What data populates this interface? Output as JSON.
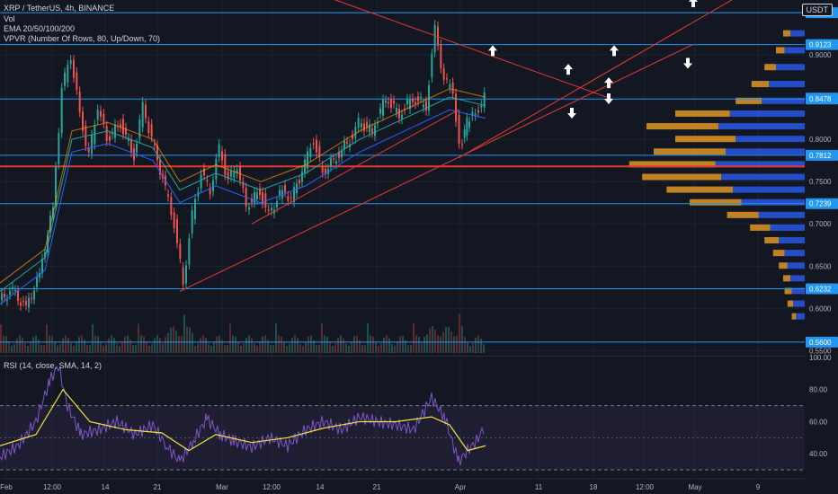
{
  "header": {
    "title": "XRP / TetherUS, 4h, BINANCE",
    "vol_label": "Vol",
    "ema_label": "EMA 20/50/100/200",
    "vpvr_label": "VPVR (Number Of Rows, 80, Up/Down, 70)",
    "rsi_label": "RSI (14, close, SMA, 14, 2)",
    "currency": "USDT"
  },
  "colors": {
    "background": "#131722",
    "grid": "#1e222d",
    "up_candle": "#26a69a",
    "down_candle": "#ef5350",
    "trendline": "#e53935",
    "hline": "#2196f3",
    "price_tag": "#2196f3",
    "vp_up": "#2962ff",
    "vp_down": "#f9a825",
    "rsi_line": "#7e57c2",
    "rsi_sma": "#f0e442",
    "rsi_band": "#7e57c2"
  },
  "chart_data": {
    "type": "line",
    "title": "XRP / TetherUS, 4h, BINANCE",
    "x_ticks": [
      "Feb",
      "12:00",
      "14",
      "21",
      "Mar",
      "12:00",
      "14",
      "21",
      "Apr",
      "11",
      "18",
      "12:00",
      "May",
      "9"
    ],
    "y_ticks": [
      "0.9500",
      "0.9000",
      "0.8500",
      "0.8000",
      "0.7500",
      "0.7000",
      "0.6500",
      "0.6000",
      "0.5500"
    ],
    "ylim": [
      0.545,
      0.965
    ],
    "price_levels": [
      "0.9500",
      "0.9123",
      "0.8488",
      "0.8478",
      "0.7812",
      "0.7239",
      "0.6232",
      "0.5600"
    ],
    "horizontal_lines": [
      0.95,
      0.9123,
      0.8478,
      0.7812,
      0.7239,
      0.6232,
      0.56
    ],
    "red_horizontal": 0.768,
    "price_path": [
      [
        0,
        0.61
      ],
      [
        15,
        0.62
      ],
      [
        30,
        0.6
      ],
      [
        45,
        0.64
      ],
      [
        60,
        0.72
      ],
      [
        70,
        0.86
      ],
      [
        80,
        0.9
      ],
      [
        90,
        0.83
      ],
      [
        100,
        0.78
      ],
      [
        110,
        0.84
      ],
      [
        120,
        0.8
      ],
      [
        135,
        0.82
      ],
      [
        150,
        0.78
      ],
      [
        160,
        0.84
      ],
      [
        170,
        0.8
      ],
      [
        185,
        0.74
      ],
      [
        195,
        0.7
      ],
      [
        205,
        0.63
      ],
      [
        215,
        0.71
      ],
      [
        225,
        0.76
      ],
      [
        235,
        0.74
      ],
      [
        245,
        0.79
      ],
      [
        255,
        0.75
      ],
      [
        265,
        0.77
      ],
      [
        275,
        0.72
      ],
      [
        290,
        0.74
      ],
      [
        300,
        0.71
      ],
      [
        315,
        0.74
      ],
      [
        325,
        0.73
      ],
      [
        340,
        0.77
      ],
      [
        350,
        0.8
      ],
      [
        360,
        0.76
      ],
      [
        375,
        0.78
      ],
      [
        390,
        0.8
      ],
      [
        400,
        0.82
      ],
      [
        415,
        0.81
      ],
      [
        430,
        0.85
      ],
      [
        445,
        0.83
      ],
      [
        460,
        0.85
      ],
      [
        475,
        0.84
      ],
      [
        485,
        0.93
      ],
      [
        495,
        0.87
      ],
      [
        505,
        0.86
      ],
      [
        512,
        0.79
      ],
      [
        520,
        0.82
      ],
      [
        530,
        0.83
      ],
      [
        540,
        0.85
      ]
    ],
    "ema_path": [
      [
        0,
        0.62
      ],
      [
        50,
        0.66
      ],
      [
        80,
        0.8
      ],
      [
        120,
        0.81
      ],
      [
        170,
        0.79
      ],
      [
        200,
        0.74
      ],
      [
        240,
        0.76
      ],
      [
        290,
        0.74
      ],
      [
        340,
        0.76
      ],
      [
        400,
        0.8
      ],
      [
        460,
        0.83
      ],
      [
        500,
        0.85
      ],
      [
        540,
        0.84
      ]
    ],
    "rsi_ylim": [
      25,
      100
    ],
    "rsi_ticks": [
      "100.00",
      "80.00",
      "60.00",
      "40.00"
    ],
    "rsi_bands": [
      30,
      70
    ],
    "rsi": [
      [
        0,
        38
      ],
      [
        20,
        45
      ],
      [
        40,
        60
      ],
      [
        55,
        85
      ],
      [
        65,
        95
      ],
      [
        75,
        70
      ],
      [
        90,
        52
      ],
      [
        110,
        55
      ],
      [
        130,
        60
      ],
      [
        150,
        52
      ],
      [
        170,
        58
      ],
      [
        185,
        45
      ],
      [
        200,
        35
      ],
      [
        215,
        48
      ],
      [
        230,
        62
      ],
      [
        245,
        52
      ],
      [
        260,
        48
      ],
      [
        280,
        44
      ],
      [
        300,
        50
      ],
      [
        320,
        45
      ],
      [
        340,
        55
      ],
      [
        360,
        60
      ],
      [
        380,
        55
      ],
      [
        400,
        63
      ],
      [
        420,
        60
      ],
      [
        440,
        58
      ],
      [
        460,
        55
      ],
      [
        480,
        75
      ],
      [
        495,
        62
      ],
      [
        510,
        35
      ],
      [
        520,
        42
      ],
      [
        530,
        48
      ],
      [
        540,
        58
      ]
    ],
    "rsi_sma": [
      [
        0,
        45
      ],
      [
        40,
        52
      ],
      [
        70,
        80
      ],
      [
        100,
        60
      ],
      [
        140,
        55
      ],
      [
        180,
        53
      ],
      [
        210,
        42
      ],
      [
        240,
        52
      ],
      [
        280,
        47
      ],
      [
        320,
        50
      ],
      [
        360,
        56
      ],
      [
        400,
        60
      ],
      [
        440,
        60
      ],
      [
        480,
        63
      ],
      [
        500,
        58
      ],
      [
        520,
        42
      ],
      [
        540,
        45
      ]
    ],
    "volume_profile": [
      {
        "price": 0.925,
        "up": 0.1,
        "down": 0.05
      },
      {
        "price": 0.905,
        "up": 0.14,
        "down": 0.06
      },
      {
        "price": 0.885,
        "up": 0.2,
        "down": 0.08
      },
      {
        "price": 0.865,
        "up": 0.25,
        "down": 0.12
      },
      {
        "price": 0.845,
        "up": 0.3,
        "down": 0.18
      },
      {
        "price": 0.83,
        "up": 0.52,
        "down": 0.38
      },
      {
        "price": 0.815,
        "up": 0.6,
        "down": 0.5
      },
      {
        "price": 0.8,
        "up": 0.48,
        "down": 0.42
      },
      {
        "price": 0.785,
        "up": 0.55,
        "down": 0.5
      },
      {
        "price": 0.77,
        "up": 0.62,
        "down": 0.6
      },
      {
        "price": 0.755,
        "up": 0.58,
        "down": 0.55
      },
      {
        "price": 0.74,
        "up": 0.5,
        "down": 0.46
      },
      {
        "price": 0.725,
        "up": 0.44,
        "down": 0.36
      },
      {
        "price": 0.71,
        "up": 0.32,
        "down": 0.22
      },
      {
        "price": 0.695,
        "up": 0.24,
        "down": 0.14
      },
      {
        "price": 0.68,
        "up": 0.18,
        "down": 0.1
      },
      {
        "price": 0.665,
        "up": 0.14,
        "down": 0.08
      },
      {
        "price": 0.65,
        "up": 0.12,
        "down": 0.06
      },
      {
        "price": 0.635,
        "up": 0.1,
        "down": 0.05
      },
      {
        "price": 0.62,
        "up": 0.09,
        "down": 0.05
      },
      {
        "price": 0.605,
        "up": 0.08,
        "down": 0.04
      },
      {
        "price": 0.59,
        "up": 0.06,
        "down": 0.03
      }
    ],
    "arrows": [
      {
        "dir": "up",
        "x": 548,
        "y": 0.905
      },
      {
        "dir": "up",
        "x": 632,
        "y": 0.883
      },
      {
        "dir": "up",
        "x": 683,
        "y": 0.905
      },
      {
        "dir": "up",
        "x": 677,
        "y": 0.867
      },
      {
        "dir": "up",
        "x": 771,
        "y": 0.963
      },
      {
        "dir": "down",
        "x": 765,
        "y": 0.89
      },
      {
        "dir": "down",
        "x": 677,
        "y": 0.848
      },
      {
        "dir": "down",
        "x": 636,
        "y": 0.831
      }
    ],
    "trendlines": [
      {
        "x1": 200,
        "y1": 0.62,
        "x2": 770,
        "y2": 0.912
      },
      {
        "x1": 280,
        "y1": 0.7,
        "x2": 510,
        "y2": 0.835
      },
      {
        "x1": 510,
        "y1": 0.778,
        "x2": 830,
        "y2": 0.975
      },
      {
        "x1": 360,
        "y1": 0.97,
        "x2": 680,
        "y2": 0.848
      }
    ]
  }
}
